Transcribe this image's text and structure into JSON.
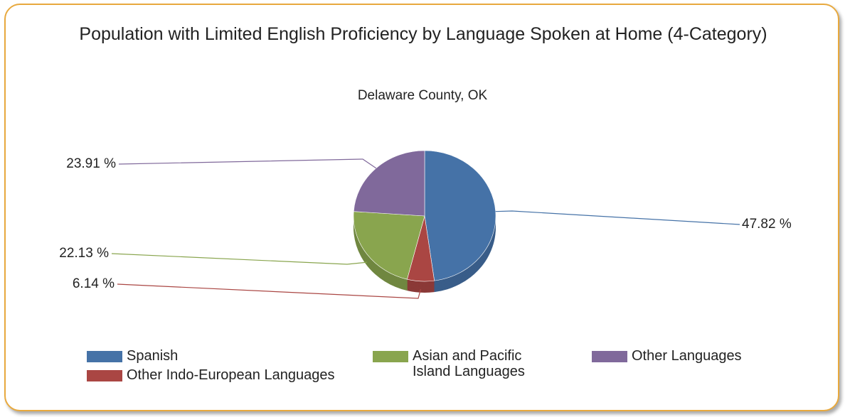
{
  "chart_data": {
    "type": "pie",
    "title": "Population with Limited English Proficiency by Language Spoken at Home (4-Category)",
    "subtitle": "Delaware County, OK",
    "categories": [
      "Spanish",
      "Other Indo-European Languages",
      "Asian and Pacific Island Languages",
      "Other Languages"
    ],
    "values": [
      47.82,
      6.14,
      22.13,
      23.91
    ],
    "value_labels": [
      "47.82 %",
      "6.14 %",
      "22.13 %",
      "23.91 %"
    ],
    "colors": [
      "#4572a7",
      "#aa4643",
      "#89a54e",
      "#80699b"
    ]
  }
}
